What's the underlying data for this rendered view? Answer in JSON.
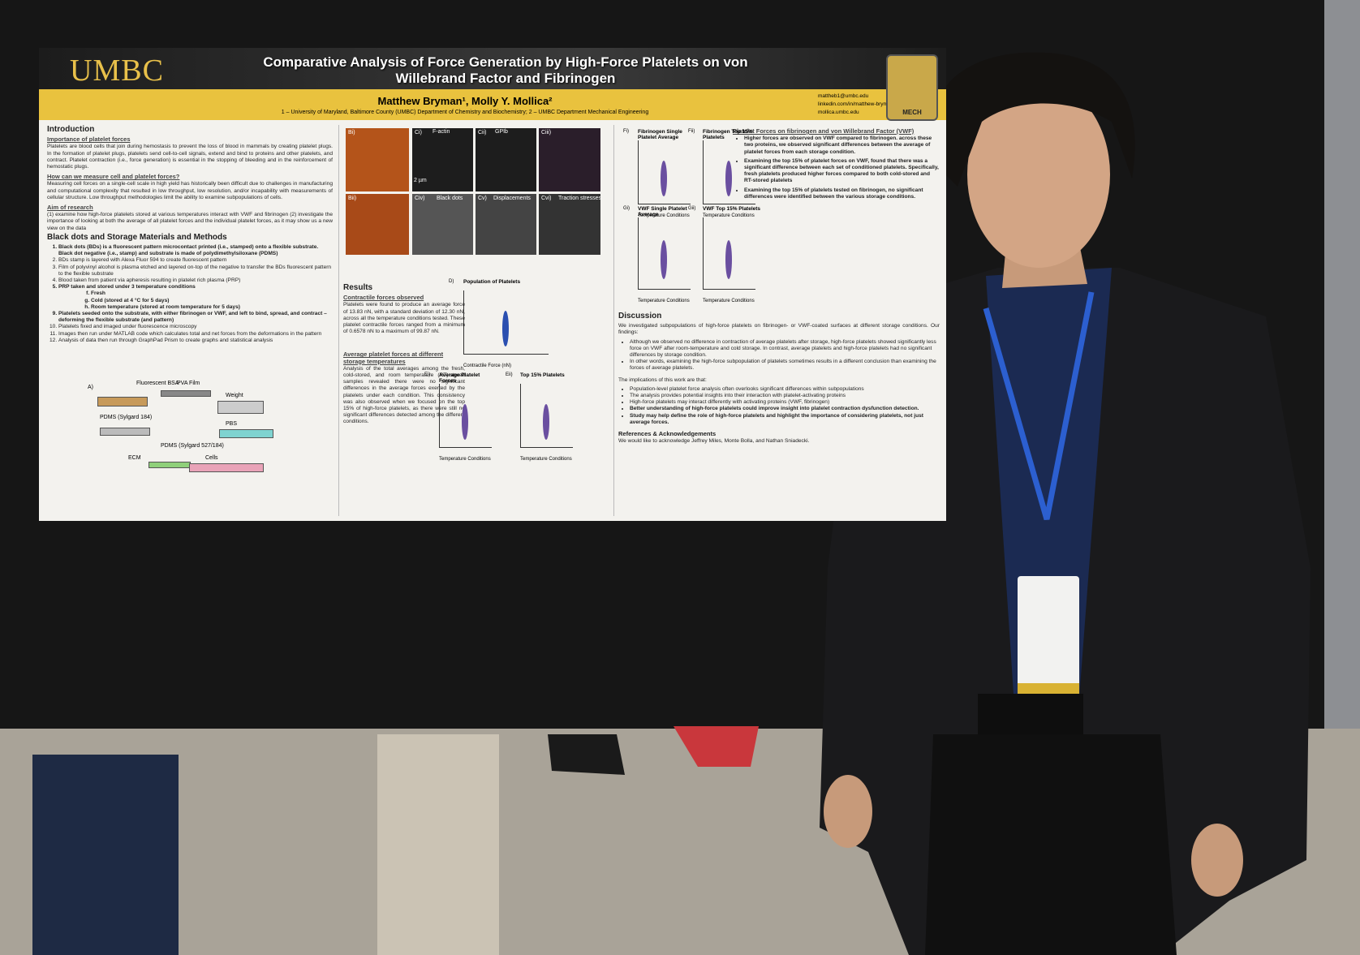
{
  "poster": {
    "logo": "UMBC",
    "title": "Comparative Analysis of Force Generation by High-Force Platelets on von Willebrand Factor and Fibrinogen",
    "authors": "Matthew Bryman¹, Molly Y. Mollica²",
    "affiliations": "1 – University of Maryland, Baltimore County (UMBC) Department of Chemistry and Biochemistry; 2 – UMBC Department Mechanical Engineering",
    "contacts": [
      "mattheb1@umbc.edu",
      "linkedin.com/in/matthew-bryman",
      "mollica.umbc.edu"
    ],
    "emblem": "MECH",
    "introduction": {
      "heading": "Introduction",
      "sections": [
        {
          "heading": "Importance of platelet forces",
          "text": "Platelets are blood cells that join during hemostasis to prevent the loss of blood in mammals by creating platelet plugs. In the formation of platelet plugs, platelets send cell-to-cell signals, extend and bind to proteins and other platelets, and contract. Platelet contraction (i.e., force generation) is essential in the stopping of bleeding and in the reinforcement of hemostatic plugs."
        },
        {
          "heading": "How can we measure cell and platelet forces?",
          "text": "Measuring cell forces on a single-cell scale in high yield has historically been difficult due to challenges in manufacturing and computational complexity that resulted in low throughput, low resolution, and/or incapability with measurements of cellular structure. Low throughput methodologies limit the ability to examine subpopulations of cells."
        },
        {
          "heading": "Aim of research",
          "text": "(1) examine how high-force platelets stored at various temperatures interact with VWF and fibrinogen (2) investigate the importance of looking at both the average of all platelet forces and the individual platelet forces, as it may show us a new view on the data"
        }
      ]
    },
    "methods": {
      "heading": "Black dots and Storage Materials and Methods",
      "items": [
        "Black dots (BDs) is a fluorescent pattern microcontact printed (i.e., stamped) onto a flexible substrate. Black dot negative (i.e., stamp) and substrate is made of polydimethylsiloxane (PDMS)",
        "BDs stamp is layered with Alexa Fluor 594 to create fluorescent pattern",
        "Film of polyvinyl alcohol is plasma etched and layered on-top of the negative to transfer the BDs fluorescent pattern to the flexible substrate",
        "Blood taken from patient via apheresis resulting in platelet rich plasma (PRP)",
        "PRP taken and stored under 3 temperature conditions",
        "Fresh",
        "Cold (stored at 4 °C for 5 days)",
        "Room temperature (stored at room temperature for 5 days)",
        "Platelets seeded onto the substrate, with either fibrinogen or VWF, and left to bind, spread, and contract – deforming the flexible substrate (and pattern)",
        "Platelets fixed and imaged under fluorescence microscopy",
        "Images then run under MATLAB code which calculates total and net forces from the deformations in the pattern",
        "Analysis of data then run through GraphPad Prism to create graphs and statistical analysis"
      ]
    },
    "figure_a": [
      "A)",
      "Fluorescent BSA",
      "PVA Film",
      "Weight",
      "PDMS (Sylgard 184)",
      "PBS",
      "PDMS (Sylgard 527/184)",
      "ECM",
      "Cells"
    ],
    "micrographs": [
      "Bi)",
      "Bii)",
      "Ci)",
      "Cii)",
      "Ciii)",
      "Civ)",
      "Cv)",
      "Cvi)",
      "F-actin",
      "GPIb",
      "2 µm",
      "Black dots",
      "Displacements",
      "Traction stresses"
    ],
    "results": {
      "heading": "Results",
      "sections": [
        {
          "heading": "Contractile forces observed",
          "text": "Platelets were found to produce an average force of 13.83 nN, with a standard deviation of 12.30 nN, across all the temperature conditions tested. These platelet contractile forces ranged from a minimum of 0.6578 nN to a maximum of 99.87 nN."
        },
        {
          "heading": "Average platelet forces at different storage temperatures",
          "text": "Analysis of the total averages among the fresh, cold-stored, and room temperature (RT)-stored samples revealed there were no significant differences in the average forces exerted by the platelets under each condition. This consistency was also observed when we focused on the top 15% of high-force platelets, as there were still no significant differences detected among the different conditions."
        }
      ]
    },
    "charts": [
      {
        "label": "D)",
        "title": "Population of Platelets",
        "axis": "Contractile Force (nN)"
      },
      {
        "label": "Ei)",
        "title": "Average Platelet Forces",
        "axis": "Temperature Conditions"
      },
      {
        "label": "Eii)",
        "title": "Top 15% Platelets",
        "axis": "Temperature Conditions"
      },
      {
        "label": "Fi)",
        "title": "Fibrinogen Single Platelet Average",
        "axis": "Temperature Conditions"
      },
      {
        "label": "Fii)",
        "title": "Fibrinogen Top 15% Platelets",
        "axis": "Temperature Conditions"
      },
      {
        "label": "Gi)",
        "title": "VWF Single Platelet Average",
        "axis": "Temperature Conditions"
      },
      {
        "label": "Gii)",
        "title": "VWF Top 15% Platelets",
        "axis": "Temperature Conditions"
      }
    ],
    "protein": {
      "heading": "Platelet Forces on fibrinogen and von Willebrand Factor (VWF)",
      "items": [
        "Higher forces are observed on VWF compared to fibrinogen. across these two proteins, we observed significant differences between the average of platelet forces from each storage condition.",
        "Examining the top 15% of platelet forces on VWF, found that there was a significant difference between each set of conditioned platelets. Specifically, fresh platelets produced higher forces compared to both cold-stored and RT-stored platelets",
        "Examining the top 15% of platelets tested on fibrinogen, no significant differences were identified between the various storage conditions."
      ]
    },
    "discussion": {
      "heading": "Discussion",
      "intro": "We investigated subpopulations of high-force platelets on fibrinogen- or VWF-coated surfaces at different storage conditions. Our findings:",
      "items": [
        "Although we observed no difference in contraction of average platelets after storage, high-force platelets showed significantly less force on VWF after room-temperature and cold storage. In contrast, average platelets and high-force platelets had no significant differences by storage condition.",
        "In other words, examining the high-force subpopulation of platelets sometimes results in a different conclusion than examining the forces of average platelets."
      ],
      "implications": "The implications of this work are that:",
      "implication_items": [
        "Population-level platelet force analysis often overlooks significant differences within subpopulations",
        "The analysis provides potential insights into their interaction with platelet-activating proteins",
        "High-force platelets may interact differently with activating proteins (VWF, fibrinogen)",
        "Better understanding of high-force platelets could improve insight into platelet contraction dysfunction detection.",
        "Study may help define the role of high-force platelets and highlight the importance of considering platelets, not just average forces."
      ]
    },
    "references": {
      "heading": "References & Acknowledgements",
      "text": "We would like to acknowledge Jeffrey Miles, Monte Bolla, and Nathan Sniadecki."
    }
  }
}
